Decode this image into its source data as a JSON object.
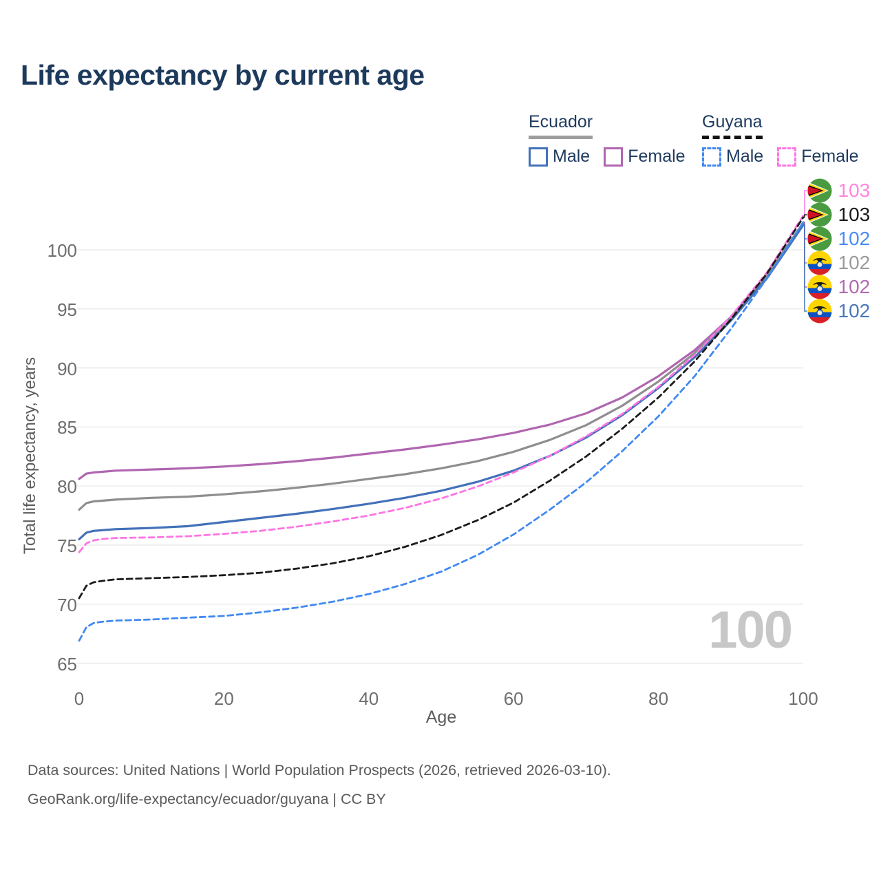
{
  "header": {
    "title": "Life expectancy by current age"
  },
  "legend": {
    "ecuador": {
      "title": "Ecuador",
      "male": "Male",
      "female": "Female"
    },
    "guyana": {
      "title": "Guyana",
      "male": "Male",
      "female": "Female"
    }
  },
  "chart_data": {
    "type": "line",
    "title": "Life expectancy by current age",
    "xlabel": "Age",
    "ylabel": "Total life expectancy, years",
    "xlim": [
      0,
      100
    ],
    "ylim": [
      65,
      100
    ],
    "xticks": [
      0,
      20,
      40,
      60,
      80,
      100
    ],
    "yticks": [
      65,
      70,
      75,
      80,
      85,
      90,
      95,
      100
    ],
    "grid": "horizontal",
    "legend_position": "top-right",
    "watermark": "100",
    "ages": [
      0,
      1,
      2,
      3,
      5,
      10,
      15,
      20,
      25,
      30,
      35,
      40,
      45,
      50,
      55,
      60,
      65,
      70,
      75,
      80,
      85,
      90,
      95,
      100
    ],
    "series": [
      {
        "name": "Ecuador Female",
        "country": "Ecuador",
        "sex": "Female",
        "style": "solid",
        "color": "#b066b0",
        "values": [
          80.6,
          81.05,
          81.15,
          81.2,
          81.3,
          81.4,
          81.5,
          81.65,
          81.85,
          82.1,
          82.4,
          82.75,
          83.1,
          83.5,
          83.95,
          84.5,
          85.2,
          86.15,
          87.5,
          89.3,
          91.5,
          94.3,
          97.9,
          102.25
        ]
      },
      {
        "name": "Ecuador Total",
        "country": "Ecuador",
        "sex": "Both",
        "style": "solid",
        "color": "#8e8e8e",
        "values": [
          78.0,
          78.55,
          78.7,
          78.75,
          78.85,
          79.0,
          79.1,
          79.3,
          79.55,
          79.85,
          80.2,
          80.6,
          81.0,
          81.5,
          82.1,
          82.9,
          83.9,
          85.15,
          86.8,
          88.85,
          91.25,
          94.2,
          97.8,
          102.3
        ]
      },
      {
        "name": "Ecuador Male",
        "country": "Ecuador",
        "sex": "Male",
        "style": "solid",
        "color": "#4371b9",
        "values": [
          75.5,
          76.05,
          76.2,
          76.25,
          76.35,
          76.45,
          76.6,
          76.95,
          77.3,
          77.65,
          78.05,
          78.5,
          79.0,
          79.6,
          80.35,
          81.3,
          82.55,
          84.1,
          86.0,
          88.3,
          90.9,
          94.0,
          97.6,
          102.1
        ]
      },
      {
        "name": "Guyana Female",
        "country": "Guyana",
        "sex": "Female",
        "style": "dashed",
        "color": "#fd75e3",
        "values": [
          74.4,
          75.15,
          75.4,
          75.5,
          75.6,
          75.65,
          75.75,
          75.95,
          76.2,
          76.55,
          77.0,
          77.5,
          78.15,
          78.95,
          79.95,
          81.15,
          82.55,
          84.2,
          86.1,
          88.4,
          91.1,
          94.35,
          98.1,
          102.9
        ]
      },
      {
        "name": "Guyana Total",
        "country": "Guyana",
        "sex": "Both",
        "style": "dashed",
        "color": "#1b1b1b",
        "values": [
          70.5,
          71.55,
          71.85,
          71.95,
          72.1,
          72.2,
          72.3,
          72.45,
          72.65,
          73.0,
          73.45,
          74.05,
          74.85,
          75.85,
          77.1,
          78.6,
          80.45,
          82.5,
          84.85,
          87.5,
          90.55,
          94.1,
          98.0,
          102.75
        ]
      },
      {
        "name": "Guyana Male",
        "country": "Guyana",
        "sex": "Male",
        "style": "dashed",
        "color": "#4189f1",
        "values": [
          66.9,
          68.05,
          68.4,
          68.5,
          68.6,
          68.7,
          68.85,
          69.0,
          69.3,
          69.7,
          70.2,
          70.85,
          71.7,
          72.75,
          74.15,
          75.9,
          78.0,
          80.3,
          82.95,
          85.9,
          89.3,
          93.3,
          97.6,
          102.35
        ]
      }
    ],
    "end_labels": [
      {
        "flag": "guyana",
        "series": "Guyana Female",
        "text": "103",
        "color": "#ff85e0"
      },
      {
        "flag": "guyana",
        "series": "Guyana Total",
        "text": "103",
        "color": "#1a1a1a"
      },
      {
        "flag": "guyana",
        "series": "Guyana Male",
        "text": "102",
        "color": "#4b8bf5"
      },
      {
        "flag": "ecuador",
        "series": "Ecuador Total",
        "text": "102",
        "color": "#9a9a9a"
      },
      {
        "flag": "ecuador",
        "series": "Ecuador Female",
        "text": "102",
        "color": "#b06ab0"
      },
      {
        "flag": "ecuador",
        "series": "Ecuador Male",
        "text": "102",
        "color": "#4a77ba"
      }
    ]
  },
  "source": {
    "line1": "Data sources: United Nations | World Population Prospects (2026, retrieved 2026-03-10).",
    "line2": "GeoRank.org/life-expectancy/ecuador/guyana | CC BY"
  }
}
